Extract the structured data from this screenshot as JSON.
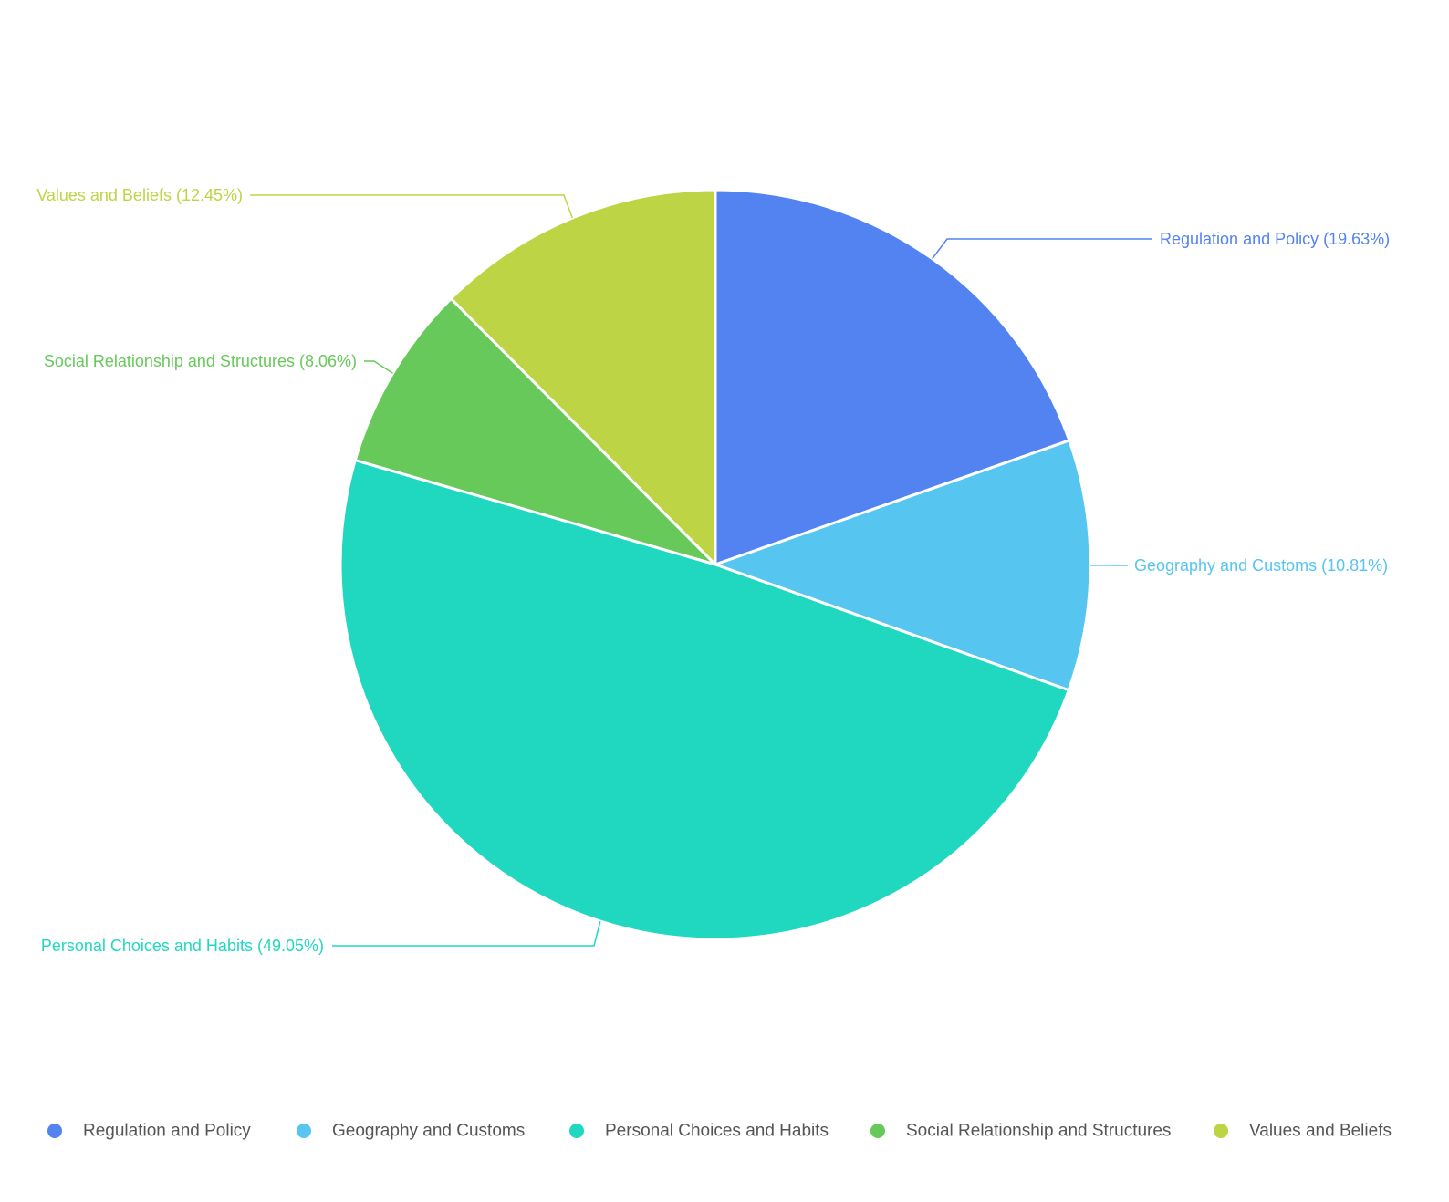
{
  "chart_data": {
    "type": "pie",
    "categories": [
      "Regulation and Policy",
      "Geography and Customs",
      "Personal Choices and Habits",
      "Social Relationship and Structures",
      "Values and Beliefs"
    ],
    "values": [
      19.63,
      10.81,
      49.05,
      8.06,
      12.45
    ],
    "slice_labels": [
      "Regulation and Policy (19.63%)",
      "Geography and Customs (10.81%)",
      "Personal Choices and Habits (49.05%)",
      "Social Relationship and Structures (8.06%)",
      "Values and Beliefs (12.45%)"
    ],
    "colors": [
      "#5383f0",
      "#56c5f0",
      "#20d8c0",
      "#66c95a",
      "#bdd545"
    ],
    "legend_placement": "bottom",
    "start_angle": "top, clockwise"
  }
}
